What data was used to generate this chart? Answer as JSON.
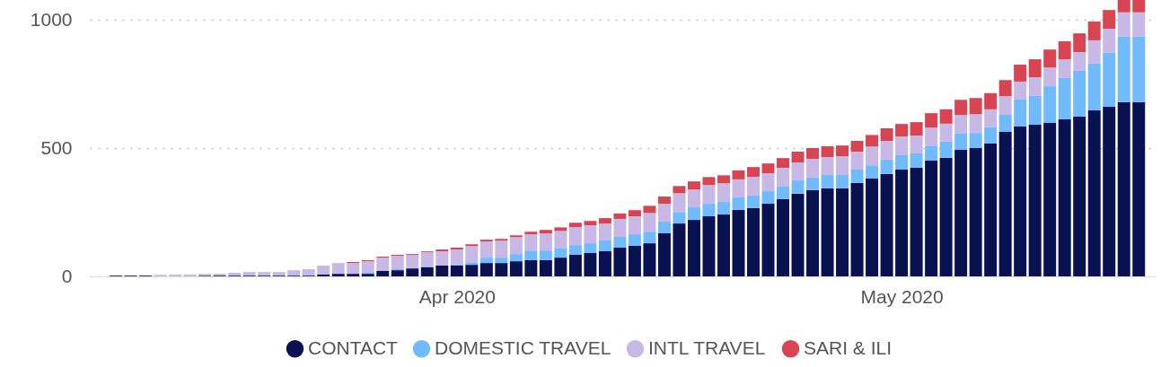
{
  "chart_data": {
    "type": "bar",
    "stacked": true,
    "x": [
      "2020-03-09",
      "2020-03-10",
      "2020-03-11",
      "2020-03-12",
      "2020-03-13",
      "2020-03-14",
      "2020-03-15",
      "2020-03-16",
      "2020-03-17",
      "2020-03-18",
      "2020-03-19",
      "2020-03-20",
      "2020-03-21",
      "2020-03-22",
      "2020-03-23",
      "2020-03-24",
      "2020-03-25",
      "2020-03-26",
      "2020-03-27",
      "2020-03-28",
      "2020-03-29",
      "2020-03-30",
      "2020-03-31",
      "2020-04-01",
      "2020-04-02",
      "2020-04-03",
      "2020-04-04",
      "2020-04-05",
      "2020-04-06",
      "2020-04-07",
      "2020-04-08",
      "2020-04-09",
      "2020-04-10",
      "2020-04-11",
      "2020-04-12",
      "2020-04-13",
      "2020-04-14",
      "2020-04-15",
      "2020-04-16",
      "2020-04-17",
      "2020-04-18",
      "2020-04-19",
      "2020-04-20",
      "2020-04-21",
      "2020-04-22",
      "2020-04-23",
      "2020-04-24",
      "2020-04-25",
      "2020-04-26",
      "2020-04-27",
      "2020-04-28",
      "2020-04-29",
      "2020-04-30",
      "2020-05-01",
      "2020-05-02",
      "2020-05-03",
      "2020-05-04",
      "2020-05-05",
      "2020-05-06",
      "2020-05-07",
      "2020-05-08",
      "2020-05-09",
      "2020-05-10",
      "2020-05-11",
      "2020-05-12",
      "2020-05-13",
      "2020-05-14",
      "2020-05-15",
      "2020-05-16",
      "2020-05-17"
    ],
    "series": [
      {
        "name": "CONTACT",
        "color": "#0a1150",
        "values": [
          3,
          3,
          3,
          null,
          0,
          0,
          3,
          3,
          3,
          3,
          3,
          3,
          3,
          3,
          7,
          10,
          10,
          10,
          21,
          24,
          31,
          35,
          42,
          42,
          45,
          52,
          52,
          59,
          63,
          63,
          73,
          84,
          91,
          98,
          112,
          119,
          129,
          168,
          206,
          220,
          234,
          241,
          259,
          266,
          283,
          301,
          322,
          336,
          343,
          343,
          364,
          381,
          399,
          416,
          423,
          451,
          462,
          493,
          500,
          518,
          563,
          584,
          591,
          598,
          612,
          623,
          647,
          661,
          679,
          679
        ]
      },
      {
        "name": "DOMESTIC TRAVEL",
        "color": "#6fbbfd",
        "values": [
          0,
          0,
          0,
          0,
          0,
          0,
          0,
          0,
          0,
          0,
          0,
          0,
          0,
          0,
          0,
          0,
          0,
          4,
          0,
          4,
          0,
          4,
          0,
          4,
          10,
          21,
          21,
          28,
          35,
          38,
          38,
          38,
          38,
          42,
          42,
          45,
          45,
          45,
          45,
          49,
          49,
          49,
          49,
          49,
          49,
          49,
          52,
          49,
          52,
          52,
          52,
          52,
          56,
          56,
          56,
          56,
          63,
          63,
          59,
          63,
          66,
          105,
          112,
          143,
          161,
          178,
          182,
          210,
          256,
          256
        ]
      },
      {
        "name": "INTL TRAVEL",
        "color": "#c8b8e6",
        "values": [
          null,
          null,
          null,
          6,
          7,
          7,
          7,
          7,
          11,
          14,
          14,
          14,
          21,
          25,
          35,
          42,
          42,
          45,
          52,
          52,
          52,
          56,
          56,
          59,
          63,
          63,
          66,
          66,
          66,
          66,
          66,
          70,
          70,
          66,
          70,
          70,
          73,
          70,
          73,
          70,
          73,
          73,
          70,
          73,
          70,
          73,
          70,
          73,
          70,
          73,
          70,
          73,
          73,
          73,
          70,
          73,
          70,
          73,
          73,
          70,
          73,
          70,
          73,
          73,
          73,
          73,
          91,
          94,
          94,
          94
        ]
      },
      {
        "name": "SARI & ILI",
        "color": "#d94452",
        "values": [
          0,
          0,
          0,
          0,
          0,
          0,
          0,
          0,
          0,
          0,
          0,
          0,
          0,
          0,
          0,
          0,
          4,
          4,
          4,
          4,
          4,
          3,
          7,
          7,
          7,
          7,
          7,
          7,
          10,
          14,
          14,
          17,
          17,
          21,
          21,
          24,
          28,
          28,
          28,
          31,
          31,
          31,
          35,
          38,
          38,
          38,
          42,
          42,
          42,
          42,
          42,
          45,
          49,
          49,
          52,
          56,
          56,
          59,
          63,
          63,
          63,
          66,
          70,
          70,
          70,
          73,
          73,
          73,
          48,
          48
        ]
      }
    ],
    "xlim": [
      "2020-03-07T13:00",
      "2020-05-17T20:00"
    ],
    "xticks": [
      {
        "value": "2020-04-01",
        "label": "Apr 2020"
      },
      {
        "value": "2020-05-01",
        "label": "May 2020"
      }
    ],
    "ylim": [
      0,
      1077
    ],
    "yticks": [
      0,
      500,
      1000
    ],
    "grid": "y",
    "legend": "bottom"
  }
}
